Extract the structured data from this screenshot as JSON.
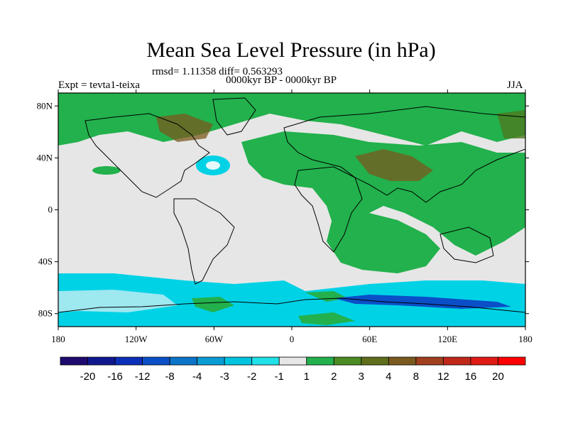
{
  "title": "Mean Sea Level Pressure (in hPa)",
  "stats": "rmsd= 1.11358 diff= 0.563293",
  "experiment": "Expt = tevta1-teixa",
  "period": "0000kyr BP - 0000kyr BP",
  "season": "JJA",
  "map": {
    "longitude_labels": [
      "180",
      "120W",
      "60W",
      "0",
      "60E",
      "120E",
      "180"
    ],
    "longitude_values": [
      -180,
      -120,
      -60,
      0,
      60,
      120,
      180
    ],
    "latitude_labels": [
      "80N",
      "40N",
      "0",
      "40S",
      "80S"
    ],
    "latitude_values": [
      80,
      40,
      0,
      -40,
      -80
    ],
    "lat_range": [
      -90,
      90
    ],
    "lon_range": [
      -180,
      180
    ],
    "background_color": "#e6e6e6",
    "field_color_examples": {
      "low": "#00d2e6",
      "mid_high": "#22b14c",
      "high": "#4c7a1f",
      "highest": "#7a5a1e"
    }
  },
  "colorbar": {
    "labels": [
      "-20",
      "-16",
      "-12",
      "-8",
      "-4",
      "-3",
      "-2",
      "-1",
      "1",
      "2",
      "3",
      "4",
      "8",
      "12",
      "16",
      "20"
    ],
    "colors": [
      "#1e0a6e",
      "#101890",
      "#0a2fb8",
      "#0a4fc8",
      "#0a74c8",
      "#0a9cd4",
      "#00c4e0",
      "#20e0e8",
      "#e6e6e6",
      "#22b14c",
      "#4c8a22",
      "#5e6e1a",
      "#7a5a1e",
      "#a0401e",
      "#c0281a",
      "#e01a14",
      "#ff0000"
    ]
  }
}
